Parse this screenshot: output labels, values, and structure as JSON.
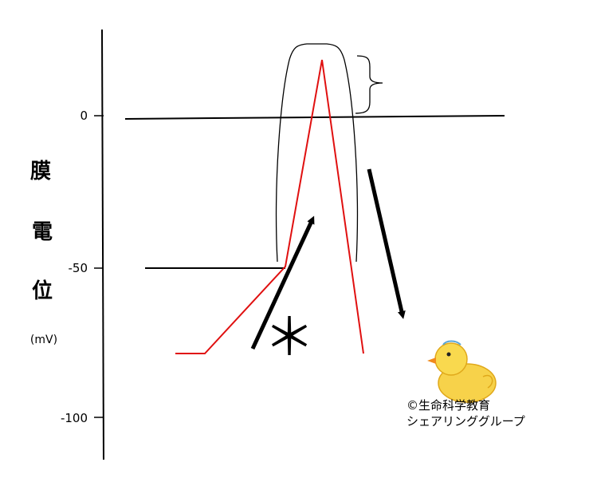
{
  "y_axis": {
    "ticks": [
      {
        "value": 0,
        "label": "0"
      },
      {
        "value": -50,
        "label": "-50"
      },
      {
        "value": -100,
        "label": "-100"
      }
    ],
    "title_chars": [
      "膜",
      "電",
      "位"
    ],
    "unit": "(mV)"
  },
  "annotation": {
    "asterisk": "＊"
  },
  "credit": {
    "line1": "©生命科学教育",
    "line2": "シェアリンググループ"
  },
  "colors": {
    "axis": "#000000",
    "action_potential": "#e01010",
    "arrow": "#000000"
  },
  "icons": [
    "chick-illustration-icon",
    "up-arrow-icon",
    "down-arrow-icon",
    "curly-brace-icon"
  ]
}
